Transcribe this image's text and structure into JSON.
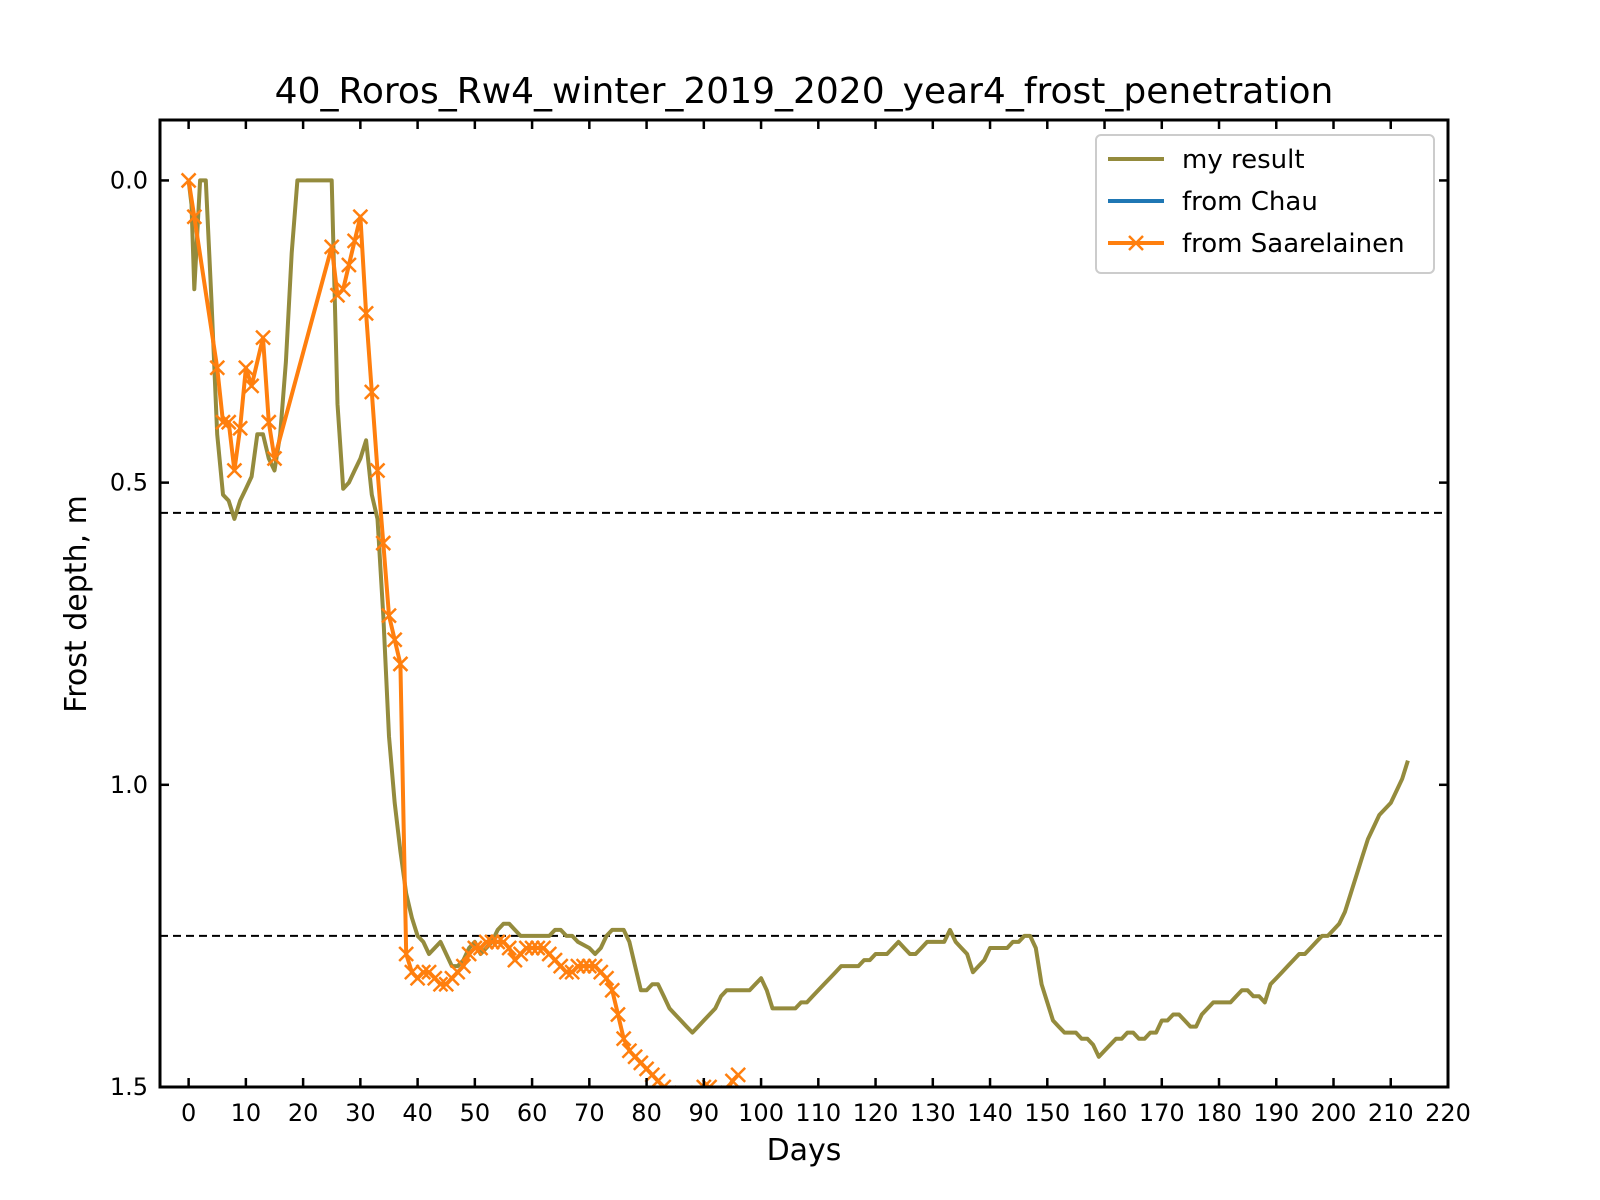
{
  "chart_data": {
    "type": "line",
    "title": "40_Roros_Rw4_winter_2019_2020_year4_frost_penetration",
    "xlabel": "Days",
    "ylabel": "Frost depth, m",
    "xlim": [
      -5,
      220
    ],
    "ylim": [
      1.5,
      -0.1
    ],
    "y_inverted": true,
    "x_ticks": [
      0,
      10,
      20,
      30,
      40,
      50,
      60,
      70,
      80,
      90,
      100,
      110,
      120,
      130,
      140,
      150,
      160,
      170,
      180,
      190,
      200,
      210,
      220
    ],
    "y_ticks": [
      0.0,
      0.5,
      1.0,
      1.5
    ],
    "y_tick_labels": [
      "0.0",
      "0.5",
      "1.0",
      "1.5"
    ],
    "grid": false,
    "legend_position": "top-right",
    "reference_lines": [
      {
        "y": 0.55,
        "style": "dashed",
        "color": "#000000"
      },
      {
        "y": 1.25,
        "style": "dashed",
        "color": "#000000"
      }
    ],
    "series": [
      {
        "name": "my result",
        "color": "#948b3d",
        "marker": "none",
        "points": [
          [
            0,
            0.0
          ],
          [
            0.5,
            0.04
          ],
          [
            1,
            0.18
          ],
          [
            2,
            0.0
          ],
          [
            3,
            0.0
          ],
          [
            4,
            0.2
          ],
          [
            5,
            0.42
          ],
          [
            6,
            0.52
          ],
          [
            7,
            0.53
          ],
          [
            8,
            0.56
          ],
          [
            9,
            0.53
          ],
          [
            10,
            0.51
          ],
          [
            11,
            0.49
          ],
          [
            12,
            0.42
          ],
          [
            13,
            0.42
          ],
          [
            14,
            0.46
          ],
          [
            15,
            0.48
          ],
          [
            16,
            0.42
          ],
          [
            17,
            0.3
          ],
          [
            18,
            0.12
          ],
          [
            19,
            0.0
          ],
          [
            25,
            0.0
          ],
          [
            26,
            0.37
          ],
          [
            27,
            0.51
          ],
          [
            28,
            0.5
          ],
          [
            29,
            0.48
          ],
          [
            30,
            0.46
          ],
          [
            31,
            0.43
          ],
          [
            32,
            0.52
          ],
          [
            33,
            0.56
          ],
          [
            34,
            0.72
          ],
          [
            35,
            0.92
          ],
          [
            36,
            1.03
          ],
          [
            37,
            1.11
          ],
          [
            38,
            1.18
          ],
          [
            39,
            1.22
          ],
          [
            40,
            1.25
          ],
          [
            41,
            1.26
          ],
          [
            42,
            1.28
          ],
          [
            44,
            1.26
          ],
          [
            45,
            1.28
          ],
          [
            46,
            1.3
          ],
          [
            47,
            1.3
          ],
          [
            48,
            1.29
          ],
          [
            49,
            1.27
          ],
          [
            50,
            1.26
          ],
          [
            51,
            1.28
          ],
          [
            52,
            1.27
          ],
          [
            53,
            1.26
          ],
          [
            54,
            1.24
          ],
          [
            55,
            1.23
          ],
          [
            56,
            1.23
          ],
          [
            57,
            1.24
          ],
          [
            58,
            1.25
          ],
          [
            60,
            1.25
          ],
          [
            62,
            1.25
          ],
          [
            63,
            1.25
          ],
          [
            64,
            1.24
          ],
          [
            65,
            1.24
          ],
          [
            66,
            1.25
          ],
          [
            67,
            1.25
          ],
          [
            68,
            1.26
          ],
          [
            70,
            1.27
          ],
          [
            71,
            1.28
          ],
          [
            72,
            1.27
          ],
          [
            73,
            1.25
          ],
          [
            74,
            1.24
          ],
          [
            75,
            1.24
          ],
          [
            76,
            1.24
          ],
          [
            77,
            1.26
          ],
          [
            78,
            1.3
          ],
          [
            79,
            1.34
          ],
          [
            80,
            1.34
          ],
          [
            81,
            1.33
          ],
          [
            82,
            1.33
          ],
          [
            83,
            1.35
          ],
          [
            84,
            1.37
          ],
          [
            85,
            1.38
          ],
          [
            86,
            1.39
          ],
          [
            87,
            1.4
          ],
          [
            88,
            1.41
          ],
          [
            89,
            1.4
          ],
          [
            90,
            1.39
          ],
          [
            91,
            1.38
          ],
          [
            92,
            1.37
          ],
          [
            93,
            1.35
          ],
          [
            94,
            1.34
          ],
          [
            95,
            1.34
          ],
          [
            96,
            1.34
          ],
          [
            97,
            1.34
          ],
          [
            98,
            1.34
          ],
          [
            99,
            1.33
          ],
          [
            100,
            1.32
          ],
          [
            101,
            1.34
          ],
          [
            102,
            1.37
          ],
          [
            103,
            1.37
          ],
          [
            104,
            1.37
          ],
          [
            105,
            1.37
          ],
          [
            106,
            1.37
          ],
          [
            107,
            1.36
          ],
          [
            108,
            1.36
          ],
          [
            109,
            1.35
          ],
          [
            110,
            1.34
          ],
          [
            111,
            1.33
          ],
          [
            112,
            1.32
          ],
          [
            113,
            1.31
          ],
          [
            114,
            1.3
          ],
          [
            115,
            1.3
          ],
          [
            116,
            1.3
          ],
          [
            117,
            1.3
          ],
          [
            118,
            1.29
          ],
          [
            119,
            1.29
          ],
          [
            120,
            1.28
          ],
          [
            121,
            1.28
          ],
          [
            122,
            1.28
          ],
          [
            123,
            1.27
          ],
          [
            124,
            1.26
          ],
          [
            125,
            1.27
          ],
          [
            126,
            1.28
          ],
          [
            127,
            1.28
          ],
          [
            128,
            1.27
          ],
          [
            129,
            1.26
          ],
          [
            130,
            1.26
          ],
          [
            131,
            1.26
          ],
          [
            132,
            1.26
          ],
          [
            133,
            1.24
          ],
          [
            134,
            1.26
          ],
          [
            135,
            1.27
          ],
          [
            136,
            1.28
          ],
          [
            137,
            1.31
          ],
          [
            138,
            1.3
          ],
          [
            139,
            1.29
          ],
          [
            140,
            1.27
          ],
          [
            141,
            1.27
          ],
          [
            142,
            1.27
          ],
          [
            143,
            1.27
          ],
          [
            144,
            1.26
          ],
          [
            145,
            1.26
          ],
          [
            146,
            1.25
          ],
          [
            147,
            1.25
          ],
          [
            148,
            1.27
          ],
          [
            149,
            1.33
          ],
          [
            150,
            1.36
          ],
          [
            151,
            1.39
          ],
          [
            152,
            1.4
          ],
          [
            153,
            1.41
          ],
          [
            154,
            1.41
          ],
          [
            155,
            1.41
          ],
          [
            156,
            1.42
          ],
          [
            157,
            1.42
          ],
          [
            158,
            1.43
          ],
          [
            159,
            1.45
          ],
          [
            160,
            1.44
          ],
          [
            161,
            1.43
          ],
          [
            162,
            1.42
          ],
          [
            163,
            1.42
          ],
          [
            164,
            1.41
          ],
          [
            165,
            1.41
          ],
          [
            166,
            1.42
          ],
          [
            167,
            1.42
          ],
          [
            168,
            1.41
          ],
          [
            169,
            1.41
          ],
          [
            170,
            1.39
          ],
          [
            171,
            1.39
          ],
          [
            172,
            1.38
          ],
          [
            173,
            1.38
          ],
          [
            174,
            1.39
          ],
          [
            175,
            1.4
          ],
          [
            176,
            1.4
          ],
          [
            177,
            1.38
          ],
          [
            178,
            1.37
          ],
          [
            179,
            1.36
          ],
          [
            180,
            1.36
          ],
          [
            181,
            1.36
          ],
          [
            182,
            1.36
          ],
          [
            183,
            1.35
          ],
          [
            184,
            1.34
          ],
          [
            185,
            1.34
          ],
          [
            186,
            1.35
          ],
          [
            187,
            1.35
          ],
          [
            188,
            1.36
          ],
          [
            189,
            1.33
          ],
          [
            190,
            1.32
          ],
          [
            191,
            1.31
          ],
          [
            192,
            1.3
          ],
          [
            193,
            1.29
          ],
          [
            194,
            1.28
          ],
          [
            195,
            1.28
          ],
          [
            196,
            1.27
          ],
          [
            197,
            1.26
          ],
          [
            198,
            1.25
          ],
          [
            199,
            1.25
          ],
          [
            200,
            1.24
          ],
          [
            201,
            1.23
          ],
          [
            202,
            1.21
          ],
          [
            203,
            1.18
          ],
          [
            204,
            1.15
          ],
          [
            205,
            1.12
          ],
          [
            206,
            1.09
          ],
          [
            207,
            1.07
          ],
          [
            208,
            1.05
          ],
          [
            209,
            1.04
          ],
          [
            210,
            1.03
          ],
          [
            211,
            1.01
          ],
          [
            212,
            0.99
          ],
          [
            213,
            0.96
          ]
        ]
      },
      {
        "name": "from Chau",
        "color": "#1f77b4",
        "marker": "none",
        "points": []
      },
      {
        "name": "from Saarelainen",
        "color": "#ff7f0e",
        "marker": "x",
        "points": [
          [
            0,
            0.0
          ],
          [
            1,
            0.06
          ],
          [
            5,
            0.31
          ],
          [
            6,
            0.4
          ],
          [
            7,
            0.4
          ],
          [
            8,
            0.48
          ],
          [
            9,
            0.41
          ],
          [
            10,
            0.31
          ],
          [
            11,
            0.34
          ],
          [
            13,
            0.26
          ],
          [
            14,
            0.4
          ],
          [
            15,
            0.46
          ],
          [
            25,
            0.11
          ],
          [
            26,
            0.19
          ],
          [
            27,
            0.18
          ],
          [
            28,
            0.14
          ],
          [
            29,
            0.1
          ],
          [
            30,
            0.06
          ],
          [
            31,
            0.22
          ],
          [
            32,
            0.35
          ],
          [
            33,
            0.48
          ],
          [
            34,
            0.6
          ],
          [
            35,
            0.72
          ],
          [
            36,
            0.76
          ],
          [
            37,
            0.8
          ],
          [
            38,
            1.28
          ],
          [
            39,
            1.31
          ],
          [
            40,
            1.32
          ],
          [
            41,
            1.31
          ],
          [
            42,
            1.31
          ],
          [
            43,
            1.32
          ],
          [
            44,
            1.33
          ],
          [
            45,
            1.33
          ],
          [
            46,
            1.32
          ],
          [
            47,
            1.31
          ],
          [
            48,
            1.3
          ],
          [
            49,
            1.28
          ],
          [
            50,
            1.27
          ],
          [
            51,
            1.27
          ],
          [
            52,
            1.26
          ],
          [
            53,
            1.26
          ],
          [
            54,
            1.26
          ],
          [
            55,
            1.26
          ],
          [
            56,
            1.27
          ],
          [
            57,
            1.29
          ],
          [
            58,
            1.28
          ],
          [
            59,
            1.27
          ],
          [
            60,
            1.27
          ],
          [
            61,
            1.27
          ],
          [
            62,
            1.27
          ],
          [
            63,
            1.28
          ],
          [
            64,
            1.29
          ],
          [
            65,
            1.3
          ],
          [
            66,
            1.31
          ],
          [
            67,
            1.31
          ],
          [
            68,
            1.3
          ],
          [
            69,
            1.3
          ],
          [
            70,
            1.3
          ],
          [
            71,
            1.3
          ],
          [
            72,
            1.31
          ],
          [
            73,
            1.32
          ],
          [
            74,
            1.34
          ],
          [
            75,
            1.38
          ],
          [
            76,
            1.42
          ],
          [
            77,
            1.44
          ],
          [
            78,
            1.45
          ],
          [
            79,
            1.46
          ],
          [
            80,
            1.47
          ],
          [
            81,
            1.48
          ],
          [
            82,
            1.49
          ],
          [
            83,
            1.5
          ],
          [
            84,
            1.51
          ],
          [
            85,
            1.52
          ],
          [
            86,
            1.52
          ],
          [
            87,
            1.52
          ],
          [
            88,
            1.52
          ],
          [
            89,
            1.51
          ],
          [
            90,
            1.5
          ],
          [
            91,
            1.5
          ],
          [
            92,
            1.51
          ],
          [
            93,
            1.52
          ],
          [
            95,
            1.49
          ],
          [
            96,
            1.48
          ]
        ]
      }
    ]
  }
}
